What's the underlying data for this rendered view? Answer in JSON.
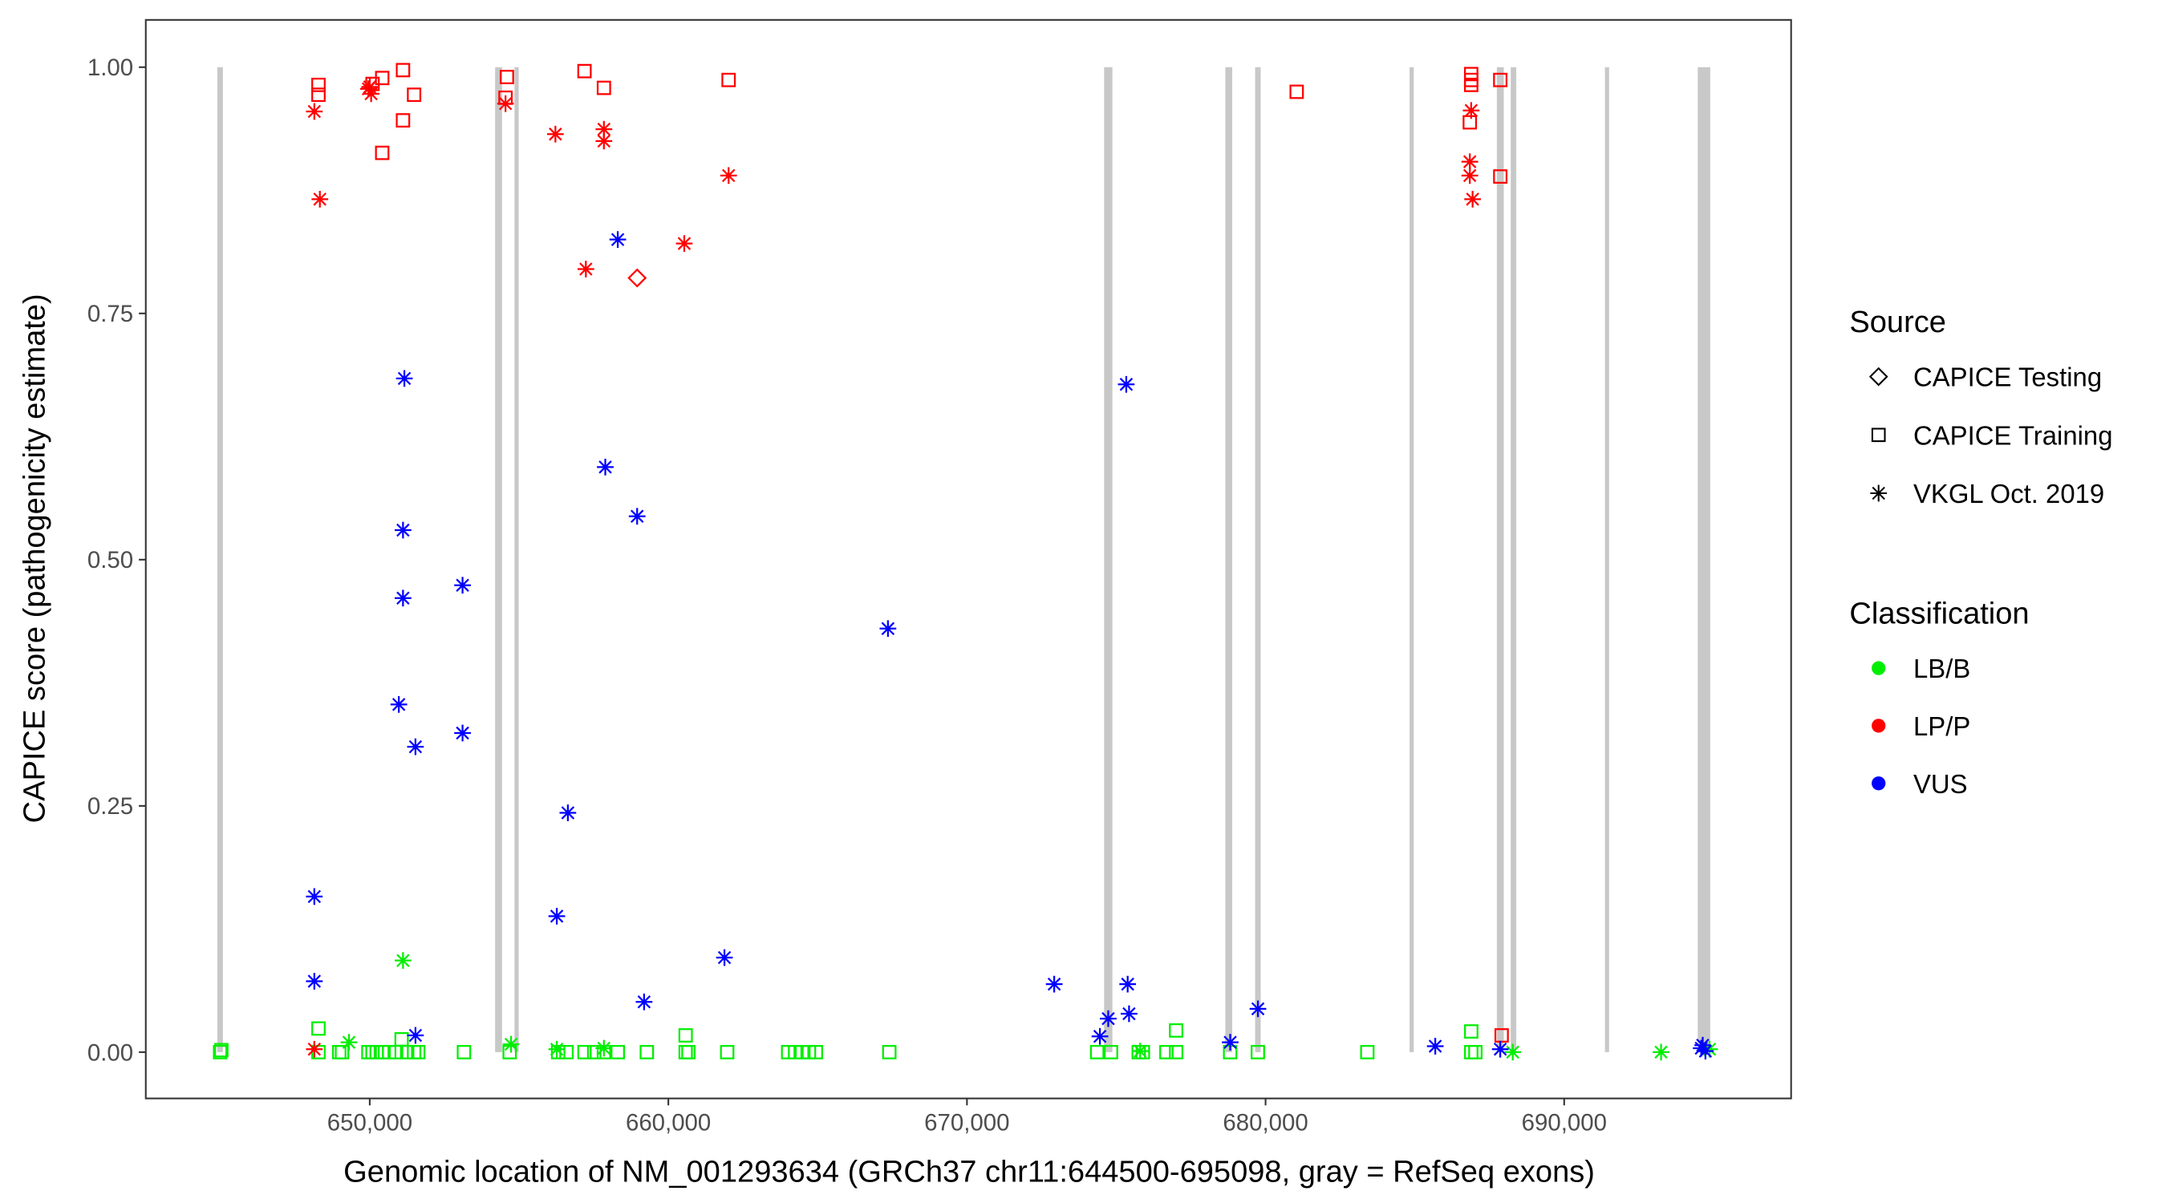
{
  "chart_data": {
    "type": "scatter",
    "title": "",
    "xlabel": "Genomic location of NM_001293634 (GRCh37 chr11:644500-695098, gray = RefSeq exons)",
    "ylabel": "CAPICE score (pathogenicity estimate)",
    "xlim": [
      642500,
      697600
    ],
    "ylim": [
      -0.047,
      1.048
    ],
    "x_ticks": [
      650000,
      660000,
      670000,
      680000,
      690000
    ],
    "x_tick_labels": [
      "650,000",
      "660,000",
      "670,000",
      "680,000",
      "690,000"
    ],
    "y_ticks": [
      0,
      0.25,
      0.5,
      0.75,
      1.0
    ],
    "y_tick_labels": [
      "0.00",
      "0.25",
      "0.50",
      "0.75",
      "1.00"
    ],
    "grid": false,
    "legend_placement": "right",
    "legend": {
      "source_title": "Source",
      "source_items": [
        {
          "label": "CAPICE Testing",
          "shape": "diamond"
        },
        {
          "label": "CAPICE Training",
          "shape": "square"
        },
        {
          "label": "VKGL Oct. 2019",
          "shape": "asterisk"
        }
      ],
      "class_title": "Classification",
      "class_items": [
        {
          "label": "LB/B",
          "color": "#00ee00"
        },
        {
          "label": "LP/P",
          "color": "#ff0000"
        },
        {
          "label": "VUS",
          "color": "#0000ff"
        }
      ]
    },
    "exons": [
      [
        644896,
        645082
      ],
      [
        654199,
        654431
      ],
      [
        654848,
        654988
      ],
      [
        674592,
        674870
      ],
      [
        678652,
        678884
      ],
      [
        679650,
        679836
      ],
      [
        684823,
        684962
      ],
      [
        687746,
        687978
      ],
      [
        688210,
        688396
      ],
      [
        691365,
        691504
      ],
      [
        694474,
        694892
      ]
    ],
    "exon_color": "#c8c8c8",
    "series": [
      {
        "name": "CAPICE Testing / LP/P",
        "source": "CAPICE Testing",
        "class": "LP/P",
        "points": [
          [
            658955,
            0.786
          ]
        ]
      },
      {
        "name": "CAPICE Training / LP/P",
        "source": "CAPICE Training",
        "class": "LP/P",
        "points": [
          [
            648283,
            0.982
          ],
          [
            648283,
            0.972
          ],
          [
            650093,
            0.983
          ],
          [
            650418,
            0.989
          ],
          [
            651114,
            0.997
          ],
          [
            651114,
            0.946
          ],
          [
            651485,
            0.972
          ],
          [
            650418,
            0.913
          ],
          [
            654594,
            0.99
          ],
          [
            654547,
            0.969
          ],
          [
            657192,
            0.996
          ],
          [
            657842,
            0.979
          ],
          [
            662018,
            0.987
          ],
          [
            681042,
            0.975
          ],
          [
            686886,
            0.993
          ],
          [
            686886,
            0.987
          ],
          [
            686886,
            0.982
          ],
          [
            686840,
            0.944
          ],
          [
            687860,
            0.987
          ],
          [
            687860,
            0.889
          ],
          [
            687906,
            0.017
          ]
        ]
      },
      {
        "name": "VKGL / LP/P",
        "source": "VKGL Oct. 2019",
        "class": "LP/P",
        "points": [
          [
            648144,
            0.955
          ],
          [
            648330,
            0.866
          ],
          [
            650000,
            0.98
          ],
          [
            650046,
            0.973
          ],
          [
            649954,
            0.978
          ],
          [
            654547,
            0.963
          ],
          [
            656218,
            0.932
          ],
          [
            657842,
            0.937
          ],
          [
            657842,
            0.925
          ],
          [
            657238,
            0.795
          ],
          [
            660533,
            0.821
          ],
          [
            662018,
            0.89
          ],
          [
            686886,
            0.956
          ],
          [
            686840,
            0.904
          ],
          [
            686840,
            0.89
          ],
          [
            686933,
            0.866
          ],
          [
            648144,
            0.003
          ]
        ]
      },
      {
        "name": "VKGL / VUS",
        "source": "VKGL Oct. 2019",
        "class": "VUS",
        "points": [
          [
            651160,
            0.684
          ],
          [
            651114,
            0.53
          ],
          [
            651114,
            0.461
          ],
          [
            650974,
            0.353
          ],
          [
            651531,
            0.31
          ],
          [
            653108,
            0.474
          ],
          [
            653108,
            0.324
          ],
          [
            657888,
            0.594
          ],
          [
            658955,
            0.544
          ],
          [
            658306,
            0.825
          ],
          [
            656635,
            0.243
          ],
          [
            656264,
            0.138
          ],
          [
            667354,
            0.43
          ],
          [
            648144,
            0.158
          ],
          [
            648144,
            0.072
          ],
          [
            651531,
            0.017
          ],
          [
            661879,
            0.096
          ],
          [
            659187,
            0.051
          ],
          [
            672922,
            0.069
          ],
          [
            675335,
            0.678
          ],
          [
            675382,
            0.069
          ],
          [
            675428,
            0.039
          ],
          [
            674731,
            0.034
          ],
          [
            674453,
            0.016
          ],
          [
            678816,
            0.01
          ],
          [
            679744,
            0.044
          ],
          [
            685683,
            0.006
          ],
          [
            687860,
            0.003
          ],
          [
            694640,
            0.007
          ],
          [
            694730,
            0.001
          ],
          [
            694590,
            0.004
          ]
        ]
      },
      {
        "name": "VKGL / LB/B",
        "source": "VKGL Oct. 2019",
        "class": "LB/B",
        "points": [
          [
            651114,
            0.093
          ],
          [
            649304,
            0.01
          ],
          [
            654733,
            0.008
          ],
          [
            656264,
            0.003
          ],
          [
            657842,
            0.004
          ],
          [
            675800,
            0.001
          ],
          [
            688278,
            0.0
          ],
          [
            693245,
            0.0
          ],
          [
            694870,
            0.003
          ]
        ]
      },
      {
        "name": "CAPICE Training / LB/B",
        "source": "CAPICE Training",
        "class": "LB/B",
        "points": [
          [
            644989,
            0.0
          ],
          [
            645030,
            0.002
          ],
          [
            648283,
            0.024
          ],
          [
            648283,
            0.0
          ],
          [
            648979,
            0.0
          ],
          [
            649072,
            0.0
          ],
          [
            649954,
            0.0
          ],
          [
            650093,
            0.0
          ],
          [
            650232,
            0.0
          ],
          [
            650418,
            0.0
          ],
          [
            650650,
            0.0
          ],
          [
            650882,
            0.0
          ],
          [
            651067,
            0.013
          ],
          [
            651253,
            0.0
          ],
          [
            651485,
            0.0
          ],
          [
            651624,
            0.0
          ],
          [
            653155,
            0.0
          ],
          [
            654686,
            0.0
          ],
          [
            656310,
            0.0
          ],
          [
            656589,
            0.0
          ],
          [
            657192,
            0.0
          ],
          [
            657517,
            0.0
          ],
          [
            657842,
            0.0
          ],
          [
            658306,
            0.0
          ],
          [
            659280,
            0.0
          ],
          [
            660579,
            0.017
          ],
          [
            660579,
            0.0
          ],
          [
            660672,
            0.0
          ],
          [
            661971,
            0.0
          ],
          [
            664013,
            0.0
          ],
          [
            664245,
            0.0
          ],
          [
            664477,
            0.0
          ],
          [
            664709,
            0.0
          ],
          [
            664941,
            0.0
          ],
          [
            667400,
            0.0
          ],
          [
            674360,
            0.0
          ],
          [
            674824,
            0.0
          ],
          [
            675752,
            0.0
          ],
          [
            675891,
            0.0
          ],
          [
            676680,
            0.0
          ],
          [
            677005,
            0.022
          ],
          [
            677005,
            0.0
          ],
          [
            678814,
            0.0
          ],
          [
            679742,
            0.0
          ],
          [
            683408,
            0.0
          ],
          [
            686888,
            0.021
          ],
          [
            686888,
            0.0
          ],
          [
            687027,
            0.0
          ]
        ]
      }
    ]
  }
}
